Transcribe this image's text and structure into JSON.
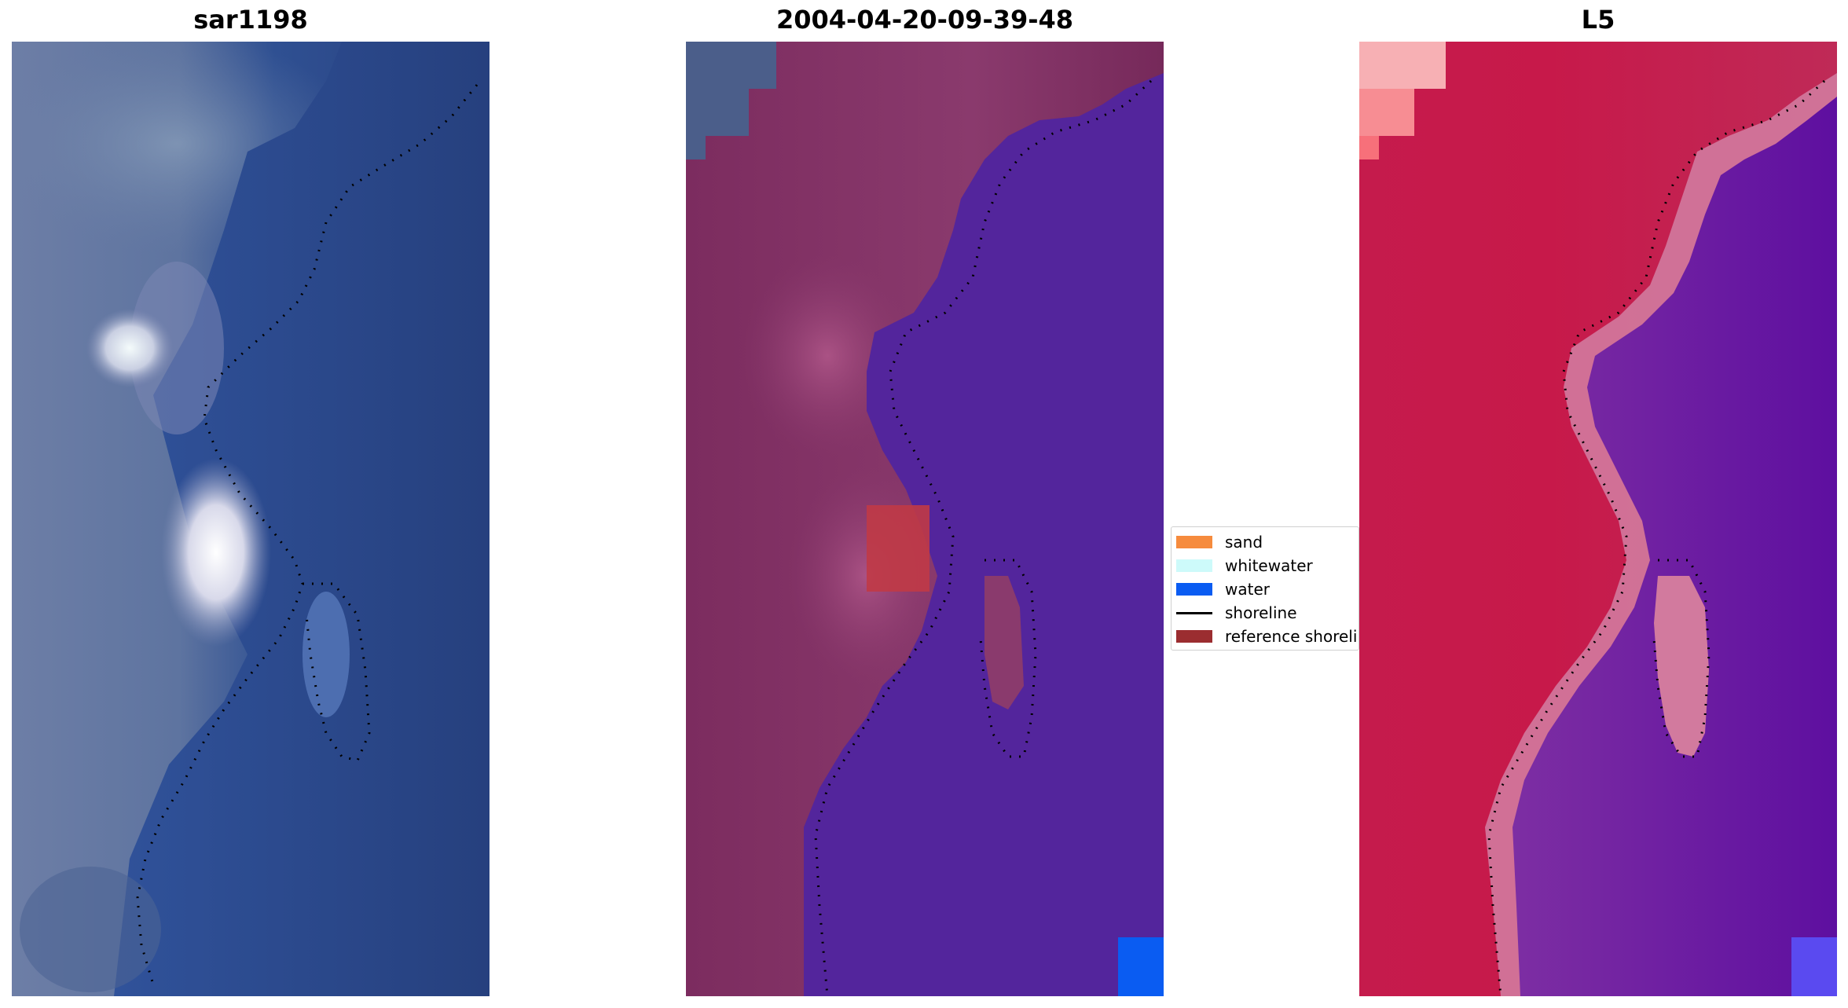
{
  "panels": [
    {
      "title": "sar1198"
    },
    {
      "title": "2004-04-20-09-39-48"
    },
    {
      "title": "L5"
    }
  ],
  "legend": {
    "items": [
      {
        "label": "sand",
        "color": "#f68b3d",
        "kind": "patch"
      },
      {
        "label": "whitewater",
        "color": "#cdfafa",
        "kind": "patch"
      },
      {
        "label": "water",
        "color": "#0a5cf2",
        "kind": "patch"
      },
      {
        "label": "shoreline",
        "color": "#000000",
        "kind": "line"
      },
      {
        "label": "reference shoreline",
        "color": "#9b2d30",
        "kind": "patch"
      }
    ]
  },
  "colors": {
    "rgb_water": "#2b4a86",
    "rgb_land": "#6f7fa5",
    "rgb_whitewater": "#e8f2f4",
    "class_land": "#7b2c5c",
    "class_water": "#53259c",
    "class_sand_overlay": "#c03a46",
    "class_water_patch": "#0a5cf2",
    "index_land": "#c9174a",
    "index_water": "#6a12a2",
    "index_edge": "#d27a9e"
  }
}
